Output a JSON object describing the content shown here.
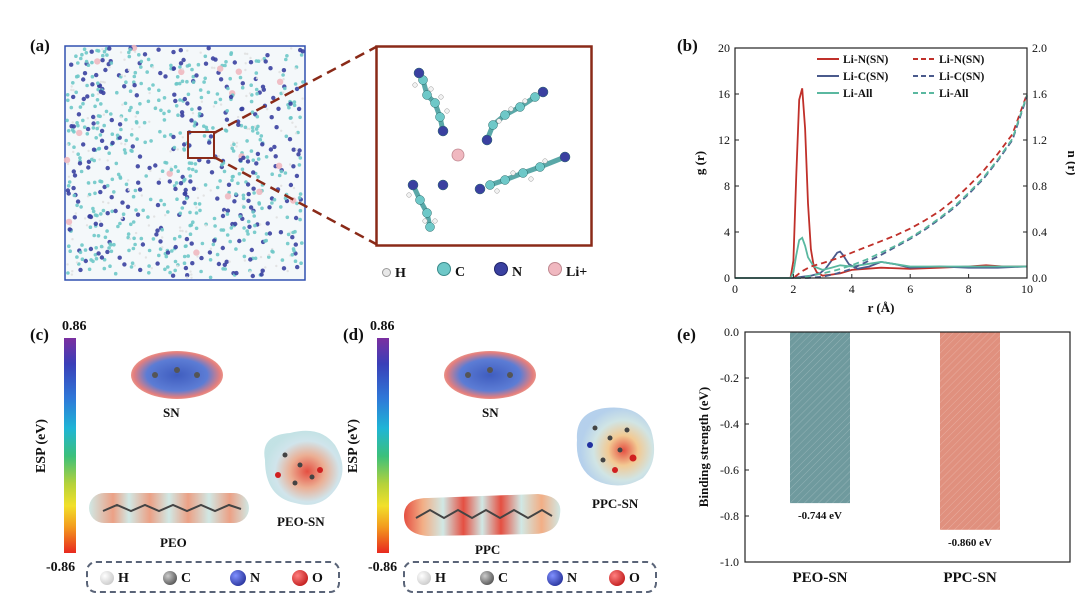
{
  "panels": {
    "a": {
      "label": "(a)",
      "atom_legend": [
        {
          "symbol": "H",
          "color": "#e8e8e8"
        },
        {
          "symbol": "C",
          "color": "#6ec8c8"
        },
        {
          "symbol": "N",
          "color": "#3a40a0"
        },
        {
          "symbol": "Li+",
          "color": "#f0b8c0"
        }
      ]
    },
    "b": {
      "label": "(b)"
    },
    "c": {
      "label": "(c)",
      "esp_max": "0.86",
      "esp_min": "-0.86",
      "esp_axis": "ESP (eV)",
      "mol_sn": "SN",
      "mol_polymer": "PEO",
      "mol_complex": "PEO-SN",
      "atom_legend": [
        {
          "symbol": "H",
          "color": "#e0e0e0"
        },
        {
          "symbol": "C",
          "color": "#555555"
        },
        {
          "symbol": "N",
          "color": "#2030a0"
        },
        {
          "symbol": "O",
          "color": "#d01818"
        }
      ]
    },
    "d": {
      "label": "(d)",
      "esp_max": "0.86",
      "esp_min": "-0.86",
      "esp_axis": "ESP (eV)",
      "mol_sn": "SN",
      "mol_polymer": "PPC",
      "mol_complex": "PPC-SN",
      "atom_legend": [
        {
          "symbol": "H",
          "color": "#e0e0e0"
        },
        {
          "symbol": "C",
          "color": "#555555"
        },
        {
          "symbol": "N",
          "color": "#2030a0"
        },
        {
          "symbol": "O",
          "color": "#d01818"
        }
      ]
    },
    "e": {
      "label": "(e)"
    }
  },
  "chart_data": [
    {
      "id": "b",
      "type": "line",
      "xlabel": "r (Å)",
      "ylabel": "g (r)",
      "y2label": "n (r)",
      "xlim": [
        0,
        10
      ],
      "ylim": [
        0,
        20
      ],
      "y2lim": [
        0,
        2.0
      ],
      "xticks": [
        0,
        2,
        4,
        6,
        8,
        10
      ],
      "yticks": [
        0,
        4,
        8,
        12,
        16,
        20
      ],
      "y2ticks": [
        "0.0",
        "0.4",
        "0.8",
        "1.2",
        "1.6",
        "2.0"
      ],
      "legend_position": "top",
      "series": [
        {
          "name": "Li-N(SN)",
          "axis": "left",
          "style": "solid",
          "color": "#c0302a",
          "x": [
            0,
            1.9,
            2.0,
            2.1,
            2.2,
            2.3,
            2.4,
            2.5,
            2.6,
            2.7,
            2.8,
            3.0,
            3.3,
            3.6,
            4.0,
            5.0,
            6.0,
            7.0,
            8.0,
            8.6,
            9.2,
            10.0
          ],
          "y": [
            0,
            0,
            1.5,
            9.0,
            15.5,
            16.5,
            13.0,
            6.5,
            2.5,
            1.0,
            0.5,
            0.2,
            0.3,
            0.4,
            0.7,
            0.9,
            0.8,
            0.9,
            1.0,
            1.1,
            1.0,
            1.0
          ]
        },
        {
          "name": "Li-C(SN)",
          "axis": "left",
          "style": "solid",
          "color": "#4a5a8c",
          "x": [
            0,
            2.0,
            2.3,
            2.6,
            2.9,
            3.1,
            3.3,
            3.5,
            3.6,
            3.7,
            3.9,
            4.2,
            4.6,
            5.0,
            5.5,
            6.0,
            7.0,
            8.0,
            9.0,
            10.0
          ],
          "y": [
            0,
            0,
            0.1,
            0.2,
            0.4,
            0.8,
            1.5,
            2.2,
            2.3,
            2.0,
            1.2,
            0.8,
            1.0,
            1.4,
            1.2,
            0.9,
            1.0,
            0.9,
            0.9,
            1.0
          ]
        },
        {
          "name": "Li-All",
          "axis": "left",
          "style": "solid",
          "color": "#5ab8a0",
          "x": [
            0,
            1.9,
            2.0,
            2.1,
            2.2,
            2.3,
            2.4,
            2.5,
            2.7,
            3.0,
            3.3,
            3.6,
            4.0,
            4.5,
            5.0,
            5.5,
            6.0,
            7.0,
            8.0,
            9.0,
            10.0
          ],
          "y": [
            0,
            0,
            0.5,
            2.0,
            3.3,
            3.5,
            2.8,
            1.8,
            1.0,
            0.7,
            0.9,
            1.1,
            1.0,
            1.2,
            1.4,
            1.2,
            1.0,
            1.0,
            1.0,
            1.0,
            1.0
          ]
        },
        {
          "name": "Li-N(SN)",
          "axis": "right",
          "style": "dashed",
          "color": "#c0302a",
          "x": [
            0,
            2.0,
            2.3,
            2.6,
            3.0,
            3.5,
            4.0,
            4.5,
            5.0,
            5.5,
            6.0,
            6.5,
            7.0,
            7.5,
            8.0,
            8.5,
            9.0,
            9.5,
            10.0
          ],
          "y": [
            0,
            0,
            0.06,
            0.1,
            0.13,
            0.17,
            0.22,
            0.27,
            0.32,
            0.37,
            0.43,
            0.5,
            0.58,
            0.68,
            0.8,
            0.93,
            1.08,
            1.25,
            1.6
          ]
        },
        {
          "name": "Li-C(SN)",
          "axis": "right",
          "style": "dashed",
          "color": "#4a5a8c",
          "x": [
            0,
            2.5,
            3.0,
            3.5,
            4.0,
            4.5,
            5.0,
            5.5,
            6.0,
            6.5,
            7.0,
            7.5,
            8.0,
            8.5,
            9.0,
            9.5,
            10.0
          ],
          "y": [
            0,
            0,
            0.01,
            0.04,
            0.08,
            0.14,
            0.2,
            0.27,
            0.34,
            0.42,
            0.51,
            0.61,
            0.73,
            0.86,
            1.02,
            1.2,
            1.58
          ]
        },
        {
          "name": "Li-All",
          "axis": "right",
          "style": "dashed",
          "color": "#5ab8a0",
          "x": [
            0,
            2.2,
            2.6,
            3.0,
            3.5,
            4.0,
            4.5,
            5.0,
            5.5,
            6.0,
            6.5,
            7.0,
            7.5,
            8.0,
            8.5,
            9.0,
            9.5,
            10.0
          ],
          "y": [
            0,
            0,
            0.02,
            0.04,
            0.07,
            0.11,
            0.16,
            0.22,
            0.28,
            0.35,
            0.43,
            0.52,
            0.62,
            0.74,
            0.87,
            1.03,
            1.21,
            1.59
          ]
        }
      ]
    },
    {
      "id": "e",
      "type": "bar",
      "ylabel": "Binding strength (eV)",
      "ylim": [
        -1.0,
        0.0
      ],
      "yticks": [
        "0.0",
        "-0.2",
        "-0.4",
        "-0.6",
        "-0.8",
        "-1.0"
      ],
      "categories": [
        "PEO-SN",
        "PPC-SN"
      ],
      "values": [
        -0.744,
        -0.86
      ],
      "data_labels": [
        "-0.744 eV",
        "-0.860 eV"
      ],
      "colors": [
        "#6f9a9e",
        "#e0907e"
      ]
    }
  ]
}
